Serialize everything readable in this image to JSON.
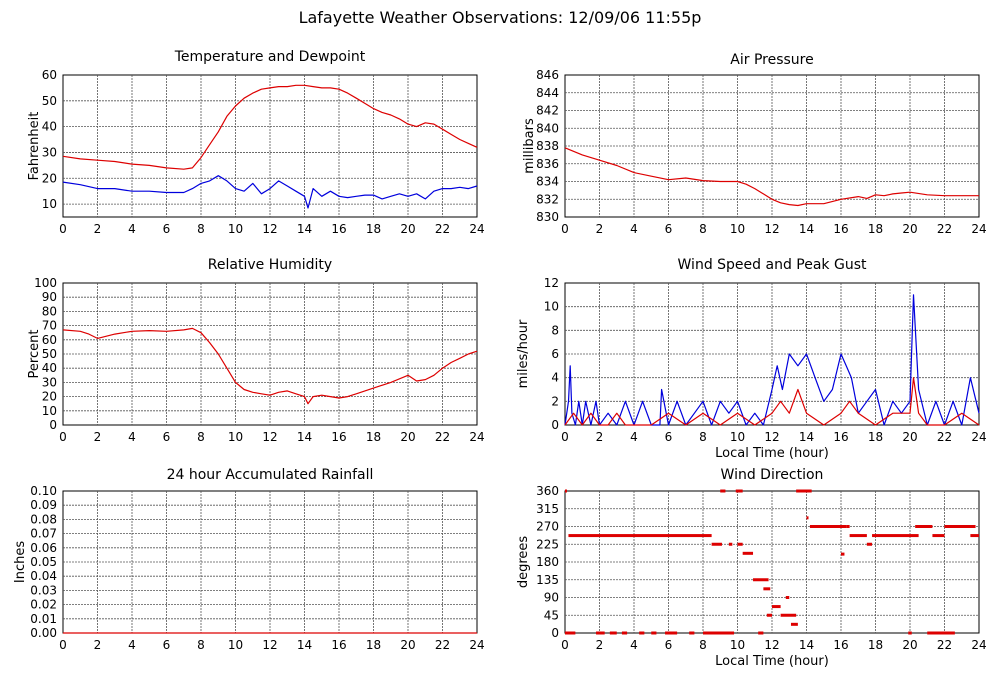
{
  "title": "Lafayette Weather Observations: 12/09/06 11:55p",
  "colors": {
    "red": "#dd0000",
    "blue": "#0000dd",
    "grid": "#555555"
  },
  "chart_data": [
    {
      "id": "temp",
      "type": "line",
      "title": "Temperature and Dewpoint",
      "xlabel": "",
      "ylabel": "Fahrenheit",
      "xlim": [
        0,
        24
      ],
      "ylim": [
        5,
        60
      ],
      "xticks": [
        "0",
        "2",
        "4",
        "6",
        "8",
        "10",
        "12",
        "14",
        "16",
        "18",
        "20",
        "22",
        "24"
      ],
      "yticks": [
        "10",
        "20",
        "30",
        "40",
        "50",
        "60"
      ],
      "ytick_values": [
        10,
        20,
        30,
        40,
        50,
        60
      ],
      "series": [
        {
          "color": "#dd0000",
          "x": [
            0,
            1,
            2,
            3,
            4,
            5,
            6,
            7,
            7.5,
            8,
            8.5,
            9,
            9.5,
            10,
            10.5,
            11,
            11.5,
            12,
            12.5,
            13,
            13.5,
            14,
            14.5,
            15,
            15.5,
            16,
            16.5,
            17,
            17.5,
            18,
            18.5,
            19,
            19.5,
            20,
            20.5,
            21,
            21.5,
            22,
            22.5,
            23,
            23.5,
            24
          ],
          "y": [
            28.5,
            27.5,
            27,
            26.5,
            25.5,
            25,
            24,
            23.5,
            24,
            28,
            33,
            38,
            44,
            48,
            51,
            53,
            54.5,
            55,
            55.5,
            55.5,
            56,
            56,
            55.5,
            55,
            55,
            54.5,
            53,
            51,
            49,
            47,
            45.5,
            44.5,
            43,
            41,
            40,
            41.5,
            41,
            39,
            37,
            35,
            33.5,
            32
          ]
        },
        {
          "color": "#0000dd",
          "x": [
            0,
            1,
            2,
            3,
            4,
            5,
            6,
            7,
            7.5,
            8,
            8.5,
            9,
            9.5,
            10,
            10.5,
            11,
            11.5,
            12,
            12.5,
            13,
            13.5,
            14,
            14.2,
            14.5,
            15,
            15.5,
            16,
            16.5,
            17,
            17.5,
            18,
            18.5,
            19,
            19.5,
            20,
            20.5,
            21,
            21.5,
            22,
            22.5,
            23,
            23.5,
            24
          ],
          "y": [
            18.5,
            17.5,
            16,
            16,
            15,
            15,
            14.5,
            14.5,
            16,
            18,
            19,
            21,
            19,
            16,
            15,
            18,
            14,
            16,
            19,
            17,
            15,
            13,
            8.5,
            16,
            13,
            15,
            13,
            12.5,
            13,
            13.5,
            13.5,
            12,
            13,
            14,
            13,
            14,
            12,
            15,
            16,
            16,
            16.5,
            16,
            17
          ]
        }
      ]
    },
    {
      "id": "pressure",
      "type": "line",
      "title": "Air Pressure",
      "xlabel": "",
      "ylabel": "millibars",
      "xlim": [
        0,
        24
      ],
      "ylim": [
        830,
        846
      ],
      "xticks": [
        "0",
        "2",
        "4",
        "6",
        "8",
        "10",
        "12",
        "14",
        "16",
        "18",
        "20",
        "22",
        "24"
      ],
      "yticks": [
        "830",
        "832",
        "834",
        "836",
        "838",
        "840",
        "842",
        "844",
        "846"
      ],
      "ytick_values": [
        830,
        832,
        834,
        836,
        838,
        840,
        842,
        844,
        846
      ],
      "series": [
        {
          "color": "#dd0000",
          "x": [
            0,
            1,
            2,
            3,
            4,
            5,
            6,
            7,
            8,
            9,
            10,
            10.5,
            11,
            11.5,
            12,
            12.5,
            13,
            13.5,
            14,
            15,
            16,
            17,
            17.5,
            18,
            18.5,
            19,
            19.5,
            20,
            21,
            22,
            23,
            24
          ],
          "y": [
            837.8,
            837,
            836.4,
            835.8,
            835,
            834.6,
            834.2,
            834.4,
            834.1,
            834,
            834,
            833.7,
            833.2,
            832.6,
            832,
            831.6,
            831.4,
            831.3,
            831.5,
            831.5,
            832,
            832.3,
            832.1,
            832.5,
            832.4,
            832.6,
            832.7,
            832.8,
            832.5,
            832.4,
            832.4,
            832.4
          ]
        }
      ]
    },
    {
      "id": "humidity",
      "type": "line",
      "title": "Relative Humidity",
      "xlabel": "",
      "ylabel": "Percent",
      "xlim": [
        0,
        24
      ],
      "ylim": [
        0,
        100
      ],
      "xticks": [
        "0",
        "2",
        "4",
        "6",
        "8",
        "10",
        "12",
        "14",
        "16",
        "18",
        "20",
        "22",
        "24"
      ],
      "yticks": [
        "0",
        "10",
        "20",
        "30",
        "40",
        "50",
        "60",
        "70",
        "80",
        "90",
        "100"
      ],
      "ytick_values": [
        0,
        10,
        20,
        30,
        40,
        50,
        60,
        70,
        80,
        90,
        100
      ],
      "series": [
        {
          "color": "#dd0000",
          "x": [
            0,
            1,
            1.5,
            2,
            3,
            4,
            5,
            6,
            7,
            7.5,
            8,
            8.5,
            9,
            9.5,
            10,
            10.5,
            11,
            11.5,
            12,
            12.5,
            13,
            13.5,
            14,
            14.2,
            14.5,
            15,
            15.5,
            16,
            16.5,
            17,
            18,
            19,
            20,
            20.5,
            21,
            21.5,
            22,
            22.5,
            23,
            23.5,
            24
          ],
          "y": [
            67,
            66,
            64,
            61,
            64,
            66,
            66.5,
            66,
            67,
            68,
            65,
            58,
            50,
            40,
            30,
            25,
            23,
            22,
            21,
            23,
            24,
            22,
            20,
            15,
            20,
            21,
            20,
            19,
            20,
            22,
            26,
            30,
            35,
            31,
            32,
            35,
            40,
            44,
            47,
            50,
            52
          ]
        }
      ]
    },
    {
      "id": "wind",
      "type": "line",
      "title": "Wind Speed and Peak Gust",
      "xlabel": "Local Time (hour)",
      "ylabel": "miles/hour",
      "xlim": [
        0,
        24
      ],
      "ylim": [
        0,
        12
      ],
      "xticks": [
        "0",
        "2",
        "4",
        "6",
        "8",
        "10",
        "12",
        "14",
        "16",
        "18",
        "20",
        "22",
        "24"
      ],
      "yticks": [
        "0",
        "2",
        "4",
        "6",
        "8",
        "10",
        "12"
      ],
      "ytick_values": [
        0,
        2,
        4,
        6,
        8,
        10,
        12
      ],
      "series": [
        {
          "color": "#0000dd",
          "x": [
            0,
            0.2,
            0.3,
            0.4,
            0.6,
            0.8,
            1,
            1.2,
            1.5,
            1.8,
            2,
            2.5,
            3,
            3.5,
            4,
            4.5,
            5,
            5.5,
            5.6,
            6,
            6.5,
            7,
            7.5,
            8,
            8.5,
            9,
            9.5,
            10,
            10.5,
            11,
            11.5,
            12,
            12.3,
            12.6,
            13,
            13.5,
            14,
            14.5,
            15,
            15.5,
            16,
            16.3,
            16.6,
            17,
            17.5,
            18,
            18.5,
            19,
            19.5,
            20,
            20.2,
            20.5,
            21,
            21.5,
            22,
            22.5,
            23,
            23.5,
            24
          ],
          "y": [
            0,
            2,
            5,
            1,
            0,
            2,
            0,
            2,
            0,
            2,
            0,
            1,
            0,
            2,
            0,
            2,
            0,
            0,
            3,
            0,
            2,
            0,
            1,
            2,
            0,
            2,
            1,
            2,
            0,
            1,
            0,
            3,
            5,
            3,
            6,
            5,
            6,
            4,
            2,
            3,
            6,
            5,
            4,
            1,
            2,
            3,
            0,
            2,
            1,
            2,
            11,
            3,
            0,
            2,
            0,
            2,
            0,
            4,
            1
          ]
        },
        {
          "color": "#dd0000",
          "x": [
            0,
            0.5,
            1,
            1.5,
            2,
            2.5,
            3,
            3.5,
            4,
            5,
            6,
            7,
            8,
            9,
            10,
            11,
            12,
            12.5,
            13,
            13.5,
            14,
            15,
            16,
            16.5,
            17,
            18,
            19,
            20,
            20.2,
            20.5,
            21,
            22,
            23,
            24
          ],
          "y": [
            0,
            1,
            0,
            1,
            0,
            0,
            1,
            0,
            0,
            0,
            1,
            0,
            1,
            0,
            1,
            0,
            1,
            2,
            1,
            3,
            1,
            0,
            1,
            2,
            1,
            0,
            1,
            1,
            4,
            1,
            0,
            0,
            1,
            0
          ]
        }
      ]
    },
    {
      "id": "rain",
      "type": "line",
      "title": "24 hour Accumulated Rainfall",
      "xlabel": "",
      "ylabel": "Inches",
      "xlim": [
        0,
        24
      ],
      "ylim": [
        0,
        0.1
      ],
      "xticks": [
        "0",
        "2",
        "4",
        "6",
        "8",
        "10",
        "12",
        "14",
        "16",
        "18",
        "20",
        "22",
        "24"
      ],
      "yticks": [
        "0.00",
        "0.01",
        "0.02",
        "0.03",
        "0.04",
        "0.05",
        "0.06",
        "0.07",
        "0.08",
        "0.09",
        "0.10"
      ],
      "ytick_values": [
        0,
        0.01,
        0.02,
        0.03,
        0.04,
        0.05,
        0.06,
        0.07,
        0.08,
        0.09,
        0.1
      ],
      "series": [
        {
          "color": "#dd0000",
          "x": [
            0,
            24
          ],
          "y": [
            0,
            0
          ]
        }
      ]
    },
    {
      "id": "direction",
      "type": "scatter",
      "title": "Wind Direction",
      "xlabel": "Local Time (hour)",
      "ylabel": "degrees",
      "xlim": [
        0,
        24
      ],
      "ylim": [
        0,
        360
      ],
      "xticks": [
        "0",
        "2",
        "4",
        "6",
        "8",
        "10",
        "12",
        "14",
        "16",
        "18",
        "20",
        "22",
        "24"
      ],
      "yticks": [
        "0",
        "45",
        "90",
        "135",
        "180",
        "225",
        "270",
        "315",
        "360"
      ],
      "ytick_values": [
        0,
        45,
        90,
        135,
        180,
        225,
        270,
        315,
        360
      ],
      "series": [
        {
          "color": "#dd0000",
          "segments": [
            [
              0,
              0.1,
              360
            ],
            [
              0,
              0.6,
              0
            ],
            [
              0.2,
              8.5,
              247
            ],
            [
              1.8,
              2.3,
              0
            ],
            [
              2.6,
              3,
              0
            ],
            [
              3.3,
              3.6,
              0
            ],
            [
              4.3,
              4.6,
              0
            ],
            [
              5,
              5.3,
              0
            ],
            [
              5.8,
              6.5,
              0
            ],
            [
              7.2,
              7.5,
              0
            ],
            [
              8,
              9.8,
              0
            ],
            [
              8.5,
              9.1,
              225
            ],
            [
              9,
              9.3,
              360
            ],
            [
              9.5,
              9.7,
              225
            ],
            [
              9.9,
              10.3,
              360
            ],
            [
              10,
              10.3,
              225
            ],
            [
              10.3,
              10.9,
              202
            ],
            [
              10.9,
              11.8,
              135
            ],
            [
              11.2,
              11.5,
              0
            ],
            [
              11.5,
              11.9,
              112
            ],
            [
              11.7,
              12,
              45
            ],
            [
              12,
              12.5,
              67
            ],
            [
              12.5,
              13.4,
              45
            ],
            [
              12.8,
              13,
              90
            ],
            [
              13.1,
              13.5,
              22
            ],
            [
              13.4,
              14.3,
              360
            ],
            [
              14,
              14.1,
              292
            ],
            [
              14.2,
              16.3,
              270
            ],
            [
              16,
              16.2,
              200
            ],
            [
              16.3,
              16.5,
              270
            ],
            [
              16.5,
              17.5,
              247
            ],
            [
              17.5,
              17.8,
              225
            ],
            [
              17.8,
              20.5,
              247
            ],
            [
              19.9,
              20.1,
              0
            ],
            [
              20.3,
              21.3,
              270
            ],
            [
              21.3,
              22,
              247
            ],
            [
              21,
              22.6,
              0
            ],
            [
              22,
              23.8,
              270
            ],
            [
              23.5,
              24,
              247
            ]
          ]
        }
      ]
    }
  ]
}
